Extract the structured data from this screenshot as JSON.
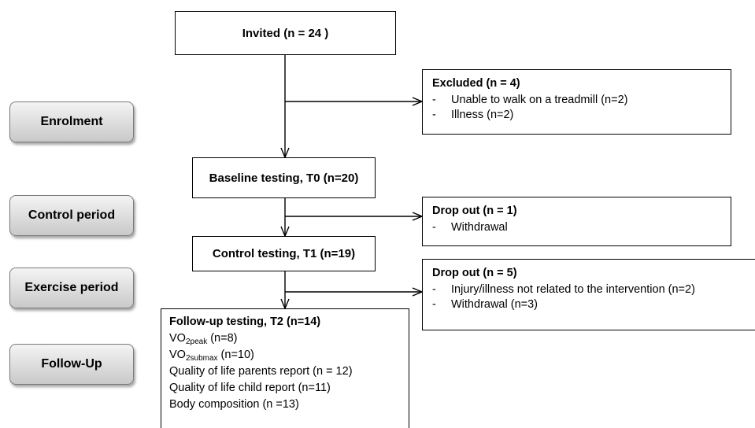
{
  "phases": {
    "enrolment": "Enrolment",
    "control": "Control period",
    "exercise": "Exercise period",
    "followup": "Follow-Up"
  },
  "invited": "Invited (n = 24 )",
  "baseline": "Baseline testing, T0 (n=20)",
  "control_testing": "Control testing, T1 (n=19)",
  "excluded": {
    "title": "Excluded (n = 4)",
    "items": [
      "Unable to walk on a treadmill (n=2)",
      "Illness (n=2)"
    ]
  },
  "dropout1": {
    "title": "Drop out (n = 1)",
    "items": [
      "Withdrawal"
    ]
  },
  "dropout2": {
    "title": "Drop out (n = 5)",
    "items": [
      "Injury/illness not related to the intervention (n=2)",
      "Withdrawal (n=3)"
    ]
  },
  "followup": {
    "title": "Follow-up testing, T2 (n=14)",
    "vo2peak_base": "VO",
    "vo2peak_sub": "2peak",
    "vo2peak_rest": " (n=8)",
    "vo2submax_base": "VO",
    "vo2submax_sub": "2submax",
    "vo2submax_rest": " (n=10)",
    "qol_parents": "Quality of life parents report (n = 12)",
    "qol_child": "Quality of life child report (n=11)",
    "body_comp": "Body composition (n =13)"
  },
  "dash": "-"
}
